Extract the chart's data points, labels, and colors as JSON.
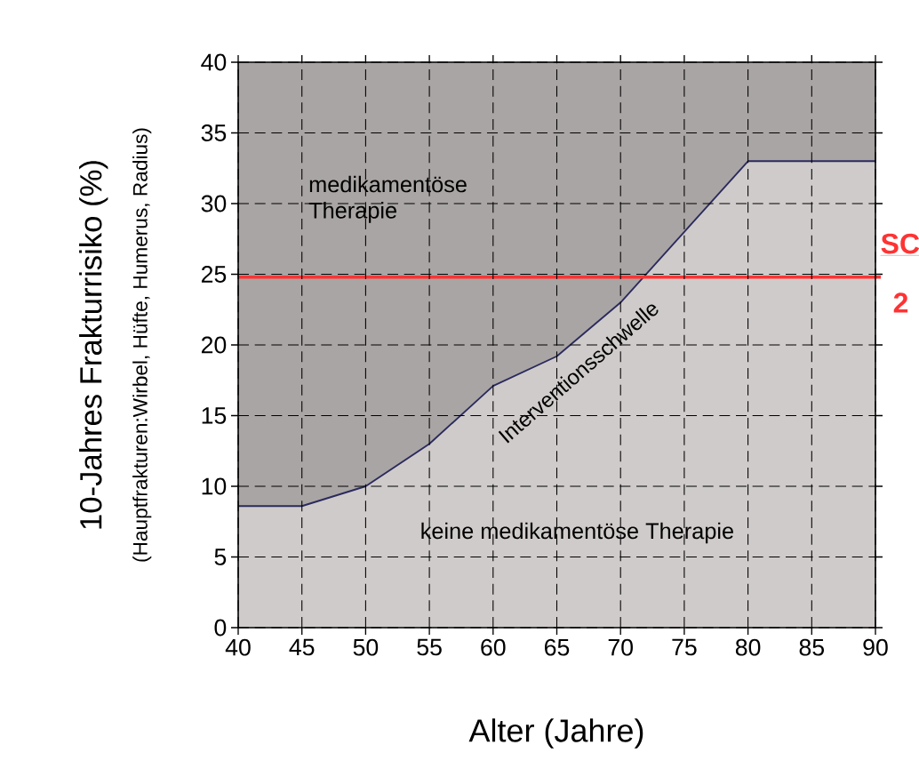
{
  "chart_data": {
    "type": "area",
    "xlabel": "Alter (Jahre)",
    "ylabel": "10-Jahres Frakturrisiko (%)",
    "x": [
      40,
      45,
      50,
      55,
      60,
      65,
      70,
      75,
      80,
      90
    ],
    "series": [
      {
        "color": "#2b2a5e",
        "values": [
          8.6,
          8.6,
          10,
          13,
          17.1,
          19.2,
          23,
          28,
          33,
          33
        ]
      }
    ],
    "xlim": [
      40,
      90
    ],
    "ylim": [
      0,
      40
    ],
    "xticks": [
      40,
      45,
      50,
      55,
      60,
      65,
      70,
      75,
      80,
      85,
      90
    ],
    "yticks": [
      0,
      5,
      10,
      15,
      20,
      25,
      30,
      35,
      40
    ],
    "grid": true,
    "ref_lines": [
      {
        "axis": "y",
        "value": 24.8,
        "color": "#ff3333",
        "label": "SC"
      }
    ],
    "annotations": [
      "(Hauptfrakturen:Wirbel, Hüfte, Humerus, Radius)",
      "medikamentöse Therapie",
      "keine medikamentöse Therapie",
      "Interventionsschwelle",
      "2"
    ]
  }
}
